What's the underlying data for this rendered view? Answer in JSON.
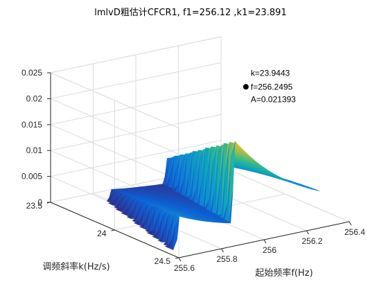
{
  "chart_data": {
    "type": "surface3d",
    "title": "lmlvD粗估计CFCR1, f1=256.12 ,k1=23.891",
    "xlabel": "起始频率f(Hz)",
    "ylabel": "调频斜率k(Hz/s)",
    "zlabel": "",
    "xlim": [
      255.6,
      256.4
    ],
    "ylim": [
      23.5,
      24.5
    ],
    "zlim": [
      0,
      0.025
    ],
    "x_ticks": [
      "255.6",
      "255.8",
      "256",
      "256.2",
      "256.4"
    ],
    "y_ticks": [
      "23.5",
      "24",
      "24.5"
    ],
    "z_ticks": [
      "0",
      "0.005",
      "0.01",
      "0.015",
      "0.02",
      "0.025"
    ],
    "grid": true,
    "colormap": "parula",
    "ridges": [
      {
        "f_start": 255.62,
        "peak_amplitude": 0.0075
      },
      {
        "f_start": 255.88,
        "peak_amplitude": 0.0212
      },
      {
        "f_start": 256.05,
        "peak_amplitude": 0.0095
      }
    ],
    "datatip": {
      "k_label": "k=23.9443",
      "f_label": "f=256.2495",
      "a_label": "A=0.021393",
      "k": 23.9443,
      "f": 256.2495,
      "A": 0.021393
    }
  }
}
